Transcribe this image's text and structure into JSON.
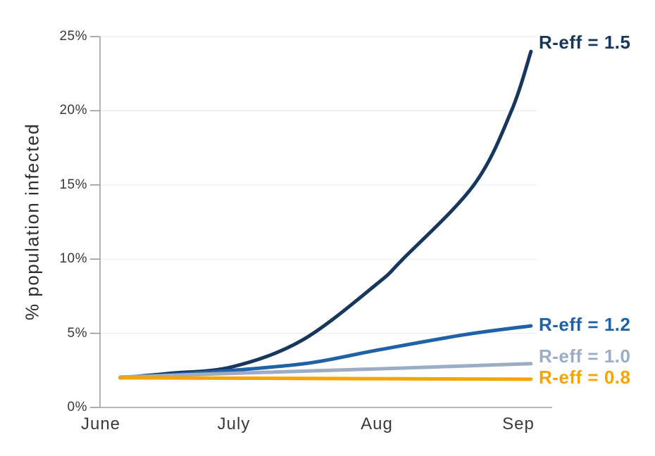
{
  "figure": {
    "background": "#ffffff",
    "colors": {
      "gridline": "#ebebeb",
      "axis": "#a0a0a0",
      "tick": "#8a8a8a",
      "text": "#3a3a3a"
    }
  },
  "chart_data": {
    "type": "line",
    "title": "",
    "xlabel": "",
    "ylabel": "% population infected",
    "x_tick_labels": [
      "June",
      "July",
      "Aug",
      "Sep"
    ],
    "y_tick_labels": [
      "0%",
      "5%",
      "10%",
      "15%",
      "20%",
      "25%"
    ],
    "y_ticks": [
      0,
      5,
      10,
      15,
      20,
      25
    ],
    "ylim": [
      0,
      25
    ],
    "x_domain_months": [
      0,
      3.1
    ],
    "grid": "horizontal",
    "legend_position": "end-of-line-labels",
    "series": [
      {
        "name": "R-eff = 1.5",
        "color": "#17375c",
        "points_month_pct": [
          [
            0.14,
            2.0
          ],
          [
            0.5,
            2.3
          ],
          [
            0.95,
            2.75
          ],
          [
            1.45,
            4.55
          ],
          [
            1.98,
            8.3
          ],
          [
            2.17,
            10.0
          ],
          [
            2.68,
            15.0
          ],
          [
            2.95,
            20.0
          ],
          [
            3.09,
            24.0
          ]
        ]
      },
      {
        "name": "R-eff = 1.2",
        "color": "#2062a8",
        "points_month_pct": [
          [
            0.14,
            2.0
          ],
          [
            0.5,
            2.2
          ],
          [
            0.95,
            2.5
          ],
          [
            1.5,
            3.0
          ],
          [
            1.98,
            3.85
          ],
          [
            2.61,
            4.9
          ],
          [
            3.09,
            5.5
          ]
        ]
      },
      {
        "name": "R-eff = 1.0",
        "color": "#9badc5",
        "points_month_pct": [
          [
            0.14,
            2.05
          ],
          [
            0.95,
            2.3
          ],
          [
            1.98,
            2.6
          ],
          [
            3.09,
            2.95
          ]
        ]
      },
      {
        "name": "R-eff = 0.8",
        "color": "#f7a400",
        "points_month_pct": [
          [
            0.14,
            2.0
          ],
          [
            1.6,
            1.95
          ],
          [
            3.09,
            1.9
          ]
        ]
      }
    ]
  }
}
